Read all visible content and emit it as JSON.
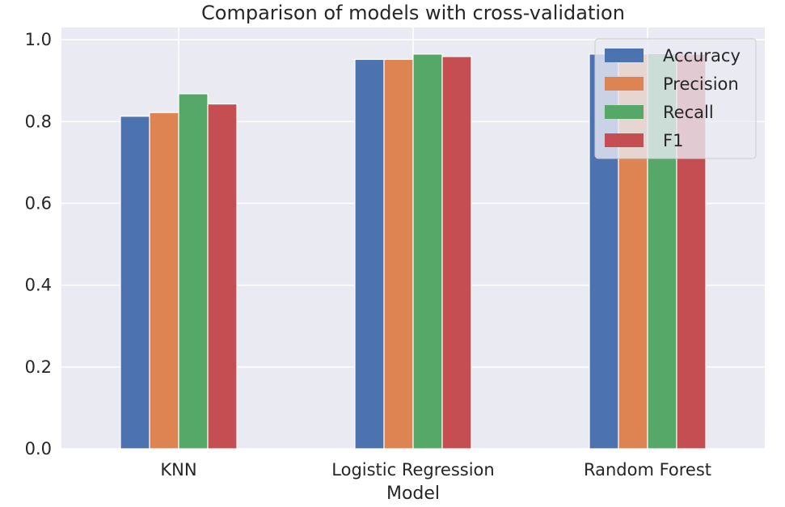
{
  "chart_data": {
    "type": "bar",
    "title": "Comparison of models with cross-validation",
    "xlabel": "Model",
    "ylabel": "",
    "categories": [
      "KNN",
      "Logistic Regression",
      "Random Forest"
    ],
    "series": [
      {
        "name": "Accuracy",
        "color": "#4c72b0",
        "values": [
          0.813,
          0.952,
          0.965
        ]
      },
      {
        "name": "Precision",
        "color": "#dd8452",
        "values": [
          0.822,
          0.952,
          0.965
        ]
      },
      {
        "name": "Recall",
        "color": "#55a868",
        "values": [
          0.868,
          0.965,
          0.966
        ]
      },
      {
        "name": "F1",
        "color": "#c44e52",
        "values": [
          0.843,
          0.959,
          0.965
        ]
      }
    ],
    "ylim": [
      0,
      1.03
    ],
    "yticks": [
      "0.0",
      "0.2",
      "0.4",
      "0.6",
      "0.8",
      "1.0"
    ],
    "grid": true,
    "legend_position": "top-right",
    "background_color": "#eaeaf2"
  }
}
